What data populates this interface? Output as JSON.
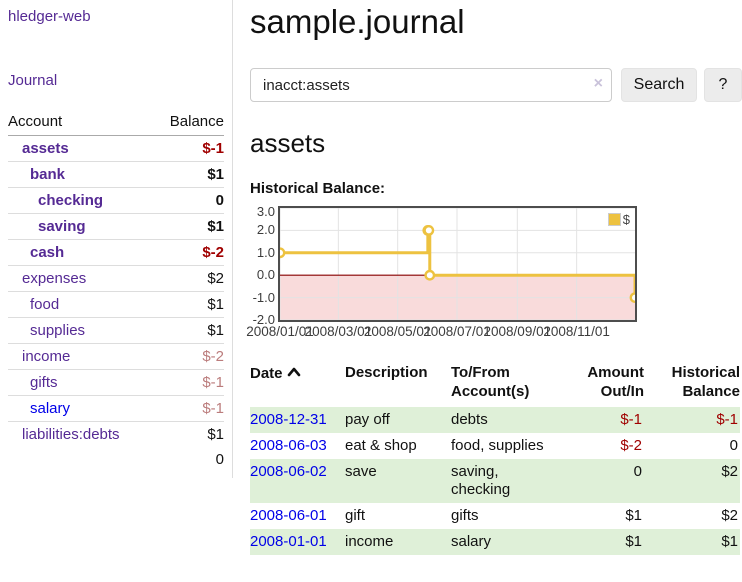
{
  "app": {
    "brand": "hledger-web",
    "nav": {
      "journal": "Journal"
    }
  },
  "sidebar": {
    "accounts_table": {
      "col_account": "Account",
      "col_balance": "Balance",
      "rows": [
        {
          "account": "assets",
          "balance": "$-1",
          "level": 1,
          "bold": true,
          "balance_style": "neg-strong",
          "visited": true
        },
        {
          "account": "bank",
          "balance": "$1",
          "level": 2,
          "bold": true,
          "balance_style": "normal",
          "visited": true
        },
        {
          "account": "checking",
          "balance": "0",
          "level": 3,
          "bold": true,
          "balance_style": "normal",
          "visited": true
        },
        {
          "account": "saving",
          "balance": "$1",
          "level": 3,
          "bold": true,
          "balance_style": "normal",
          "visited": true
        },
        {
          "account": "cash",
          "balance": "$-2",
          "level": 2,
          "bold": true,
          "balance_style": "neg-strong",
          "visited": true
        },
        {
          "account": "expenses",
          "balance": "$2",
          "level": 1,
          "bold": false,
          "balance_style": "normal",
          "visited": true
        },
        {
          "account": "food",
          "balance": "$1",
          "level": 2,
          "bold": false,
          "balance_style": "normal",
          "visited": true
        },
        {
          "account": "supplies",
          "balance": "$1",
          "level": 2,
          "bold": false,
          "balance_style": "normal",
          "visited": true
        },
        {
          "account": "income",
          "balance": "$-2",
          "level": 1,
          "bold": false,
          "balance_style": "neg-soft",
          "visited": true
        },
        {
          "account": "gifts",
          "balance": "$-1",
          "level": 2,
          "bold": false,
          "balance_style": "neg-soft",
          "visited": true
        },
        {
          "account": "salary",
          "balance": "$-1",
          "level": 2,
          "bold": false,
          "balance_style": "neg-soft",
          "visited": false
        },
        {
          "account": "liabilities:debts",
          "balance": "$1",
          "level": 1,
          "bold": false,
          "balance_style": "normal",
          "visited": true
        }
      ],
      "total": "0"
    }
  },
  "main": {
    "title": "sample.journal",
    "search": {
      "value": "inacct:assets",
      "clear_icon": "×",
      "button_label": "Search",
      "help_label": "?"
    },
    "account_heading": "assets",
    "chart_title": "Historical Balance:"
  },
  "chart_data": {
    "type": "line",
    "step": true,
    "title": "Historical Balance:",
    "legend": {
      "label": "$",
      "color": "#edc240",
      "position": "top-right"
    },
    "series": [
      {
        "name": "$",
        "color": "#edc240",
        "points": [
          {
            "date": "2008-01-01",
            "day": 0,
            "value": 1
          },
          {
            "date": "2008-06-01",
            "day": 152,
            "value": 2
          },
          {
            "date": "2008-06-02",
            "day": 153,
            "value": 2
          },
          {
            "date": "2008-06-03",
            "day": 154,
            "value": 0
          },
          {
            "date": "2008-12-31",
            "day": 365,
            "value": -1
          }
        ]
      }
    ],
    "x_range_days": [
      0,
      365
    ],
    "y_range": [
      -2,
      3
    ],
    "x_ticks": [
      {
        "label": "2008/01/01",
        "day": 0
      },
      {
        "label": "2008/03/01",
        "day": 60
      },
      {
        "label": "2008/05/01",
        "day": 121
      },
      {
        "label": "2008/07/01",
        "day": 182
      },
      {
        "label": "2008/09/01",
        "day": 244
      },
      {
        "label": "2008/11/01",
        "day": 305
      }
    ],
    "y_ticks": [
      "3.0",
      "2.0",
      "1.0",
      "0.0",
      "-1.0",
      "-2.0"
    ],
    "grid": true,
    "negative_region_color": "#f9dbdb",
    "zero_line_color": "#8b0000"
  },
  "register": {
    "headers": [
      {
        "lines": [
          "Date"
        ],
        "align": "left",
        "sort": "asc"
      },
      {
        "lines": [
          "Description"
        ],
        "align": "left"
      },
      {
        "lines": [
          "To/From",
          "Account(s)"
        ],
        "align": "left"
      },
      {
        "lines": [
          "Amount",
          "Out/In"
        ],
        "align": "right"
      },
      {
        "lines": [
          "Historical",
          "Balance"
        ],
        "align": "right"
      }
    ],
    "rows": [
      {
        "date": "2008-12-31",
        "description": "pay off",
        "accounts": "debts",
        "amount": "$-1",
        "amount_neg": true,
        "balance": "$-1",
        "balance_neg": true
      },
      {
        "date": "2008-06-03",
        "description": "eat & shop",
        "accounts": "food, supplies",
        "amount": "$-2",
        "amount_neg": true,
        "balance": "0",
        "balance_neg": false
      },
      {
        "date": "2008-06-02",
        "description": "save",
        "accounts": "saving, checking",
        "amount": "0",
        "amount_neg": false,
        "balance": "$2",
        "balance_neg": false
      },
      {
        "date": "2008-06-01",
        "description": "gift",
        "accounts": "gifts",
        "amount": "$1",
        "amount_neg": false,
        "balance": "$2",
        "balance_neg": false
      },
      {
        "date": "2008-01-01",
        "description": "income",
        "accounts": "salary",
        "amount": "$1",
        "amount_neg": false,
        "balance": "$1",
        "balance_neg": false
      }
    ]
  }
}
